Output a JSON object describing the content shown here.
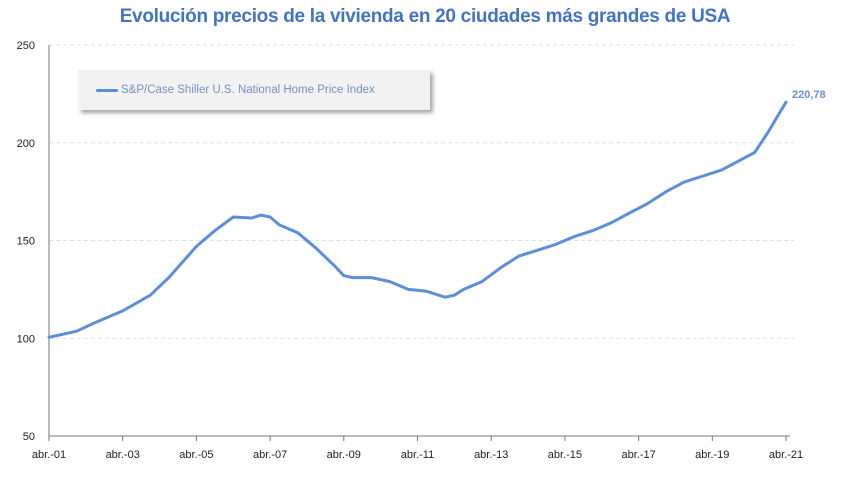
{
  "chart_data": {
    "type": "line",
    "title": "Evolución precios de la vivienda en 20 ciudades más grandes de USA",
    "xlabel": "",
    "ylabel": "",
    "ylim": [
      50,
      250
    ],
    "yticks": [
      50,
      100,
      150,
      200,
      250
    ],
    "xlim": [
      2001.25,
      2021.25
    ],
    "xtick_labels": [
      "abr.-01",
      "abr.-03",
      "abr.-05",
      "abr.-07",
      "abr.-09",
      "abr.-11",
      "abr.-13",
      "abr.-15",
      "abr.-17",
      "abr.-19",
      "abr.-21"
    ],
    "grid": "horizontal dashed",
    "legend_placement": "top-left",
    "colors": {
      "line": "#5b8fd9",
      "title": "#4472c4",
      "data_label": "#6f8fd0"
    },
    "series": [
      {
        "name": "S&P/Case Shiller U.S. National Home Price Index",
        "x": [
          2001.25,
          2002,
          2002.5,
          2003.25,
          2004,
          2004.5,
          2005.25,
          2005.75,
          2006.25,
          2006.75,
          2007,
          2007.25,
          2007.5,
          2008,
          2008.5,
          2009,
          2009.25,
          2009.5,
          2010,
          2010.25,
          2010.5,
          2011,
          2011.5,
          2012,
          2012.25,
          2012.5,
          2013,
          2013.5,
          2014,
          2014.5,
          2015,
          2015.5,
          2016,
          2016.5,
          2017,
          2017.5,
          2018,
          2018.5,
          2019,
          2019.5,
          2020,
          2020.4,
          2020.75,
          2021.25
        ],
        "values": [
          100.5,
          103.6,
          108,
          114,
          122,
          131,
          147,
          155,
          162,
          161.5,
          163,
          162,
          158,
          154,
          146,
          137,
          132,
          131,
          131,
          130,
          129,
          125,
          124,
          121,
          122,
          125,
          129,
          136,
          142,
          145,
          148,
          152,
          155,
          159,
          164,
          169,
          175,
          180,
          183,
          186,
          191,
          195,
          205,
          220.78
        ]
      }
    ],
    "annotations": [
      {
        "text": "220,78",
        "x": 2021.25,
        "y": 220.78
      }
    ]
  }
}
